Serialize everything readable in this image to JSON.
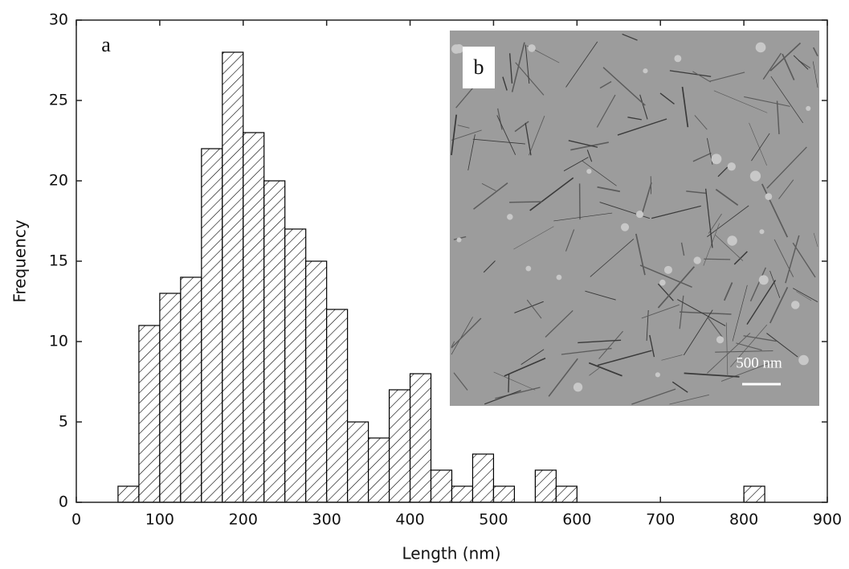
{
  "chart_data": {
    "type": "histogram",
    "x_label": "Length (nm)",
    "y_label": "Frequency",
    "bins": [
      50,
      75,
      100,
      125,
      150,
      175,
      200,
      225,
      250,
      275,
      300,
      325,
      350,
      375,
      400,
      425,
      450,
      475,
      500,
      525,
      550,
      575,
      600,
      625,
      650,
      675,
      700,
      725,
      750,
      775,
      800,
      825
    ],
    "values": [
      1,
      11,
      13,
      14,
      22,
      28,
      23,
      20,
      17,
      15,
      12,
      5,
      4,
      7,
      8,
      2,
      1,
      3,
      1,
      0,
      2,
      1,
      0,
      0,
      0,
      0,
      0,
      0,
      0,
      0,
      1
    ],
    "color": "#000000",
    "xlim": [
      0,
      900
    ],
    "xticks": [
      0,
      100,
      200,
      300,
      400,
      500,
      600,
      700,
      800,
      900
    ],
    "ylim": [
      0,
      30
    ],
    "yticks": [
      0,
      5,
      10,
      15,
      20,
      25,
      30
    ],
    "annotations": [
      "a",
      "b",
      "500 nm"
    ]
  }
}
